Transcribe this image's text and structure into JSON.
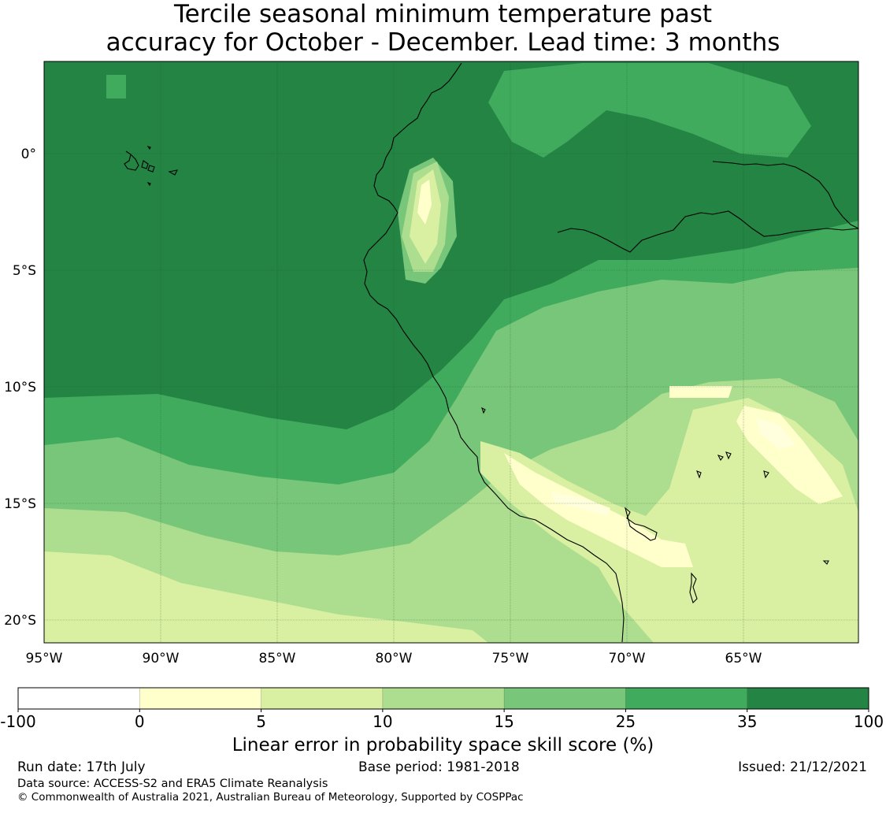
{
  "title_line1": "Tercile seasonal minimum temperature past",
  "title_line2": "accuracy for October - December. Lead time: 3 months",
  "lon_ticks": [
    "95°W",
    "90°W",
    "85°W",
    "80°W",
    "75°W",
    "70°W",
    "65°W"
  ],
  "lat_ticks": [
    "0°",
    "5°S",
    "10°S",
    "15°S",
    "20°S"
  ],
  "colorbar": {
    "boundaries": [
      "-100",
      "0",
      "5",
      "10",
      "15",
      "25",
      "35",
      "100"
    ],
    "colors": [
      "#ffffff",
      "#ffffcc",
      "#d9f0a3",
      "#addd8e",
      "#78c679",
      "#41ab5d",
      "#238443"
    ],
    "label": "Linear error in probability space skill score (%)"
  },
  "footer": {
    "run_date": "Run date: 17th July",
    "base_period": "Base period: 1981-2018",
    "issued": "Issued: 21/12/2021",
    "data_source": "Data source: ACCESS-S2 and ERA5 Climate Reanalysis",
    "copyright": "© Commonwealth of Australia 2021, Australian Bureau of Meteorology, Supported by COSPPac"
  }
}
